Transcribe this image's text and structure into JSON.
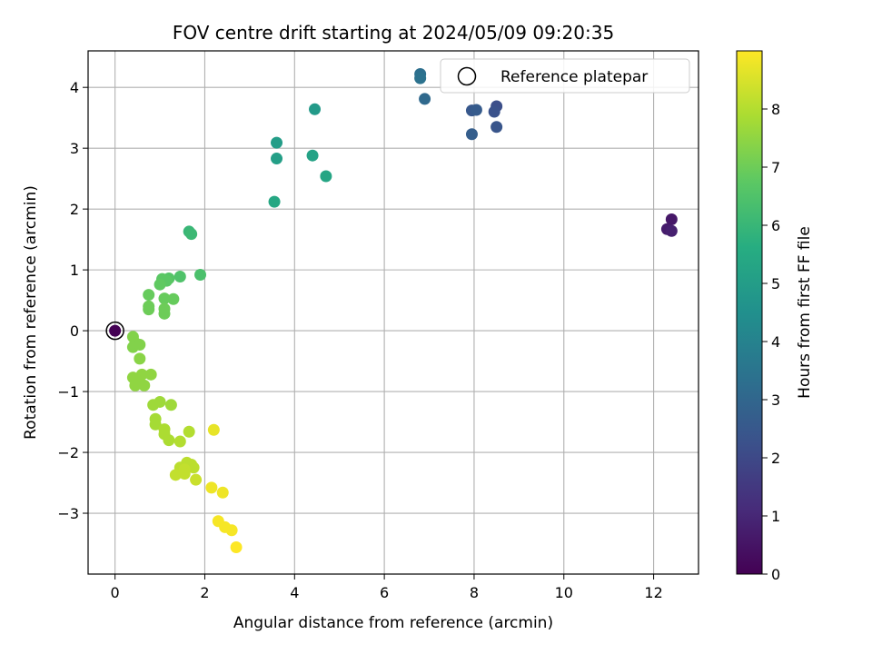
{
  "chart_data": {
    "type": "scatter",
    "title": "FOV centre drift starting at 2024/05/09 09:20:35",
    "xlabel": "Angular distance from reference (arcmin)",
    "ylabel": "Rotation from reference (arcmin)",
    "xlim": [
      -0.6,
      13.0
    ],
    "ylim": [
      -4.0,
      4.6
    ],
    "xticks": [
      0,
      2,
      4,
      6,
      8,
      10,
      12
    ],
    "yticks": [
      -3,
      -2,
      -1,
      0,
      1,
      2,
      3,
      4
    ],
    "grid": true,
    "legend": {
      "position": "top-right",
      "entries": [
        "Reference platepar"
      ]
    },
    "colorbar": {
      "label": "Hours from first FF file",
      "range": [
        0,
        9.0
      ],
      "ticks": [
        0,
        1,
        2,
        3,
        4,
        5,
        6,
        7,
        8
      ],
      "colormap": "viridis"
    },
    "reference_point": {
      "x": 0,
      "y": 0,
      "hours": 0
    },
    "points": [
      {
        "x": 12.4,
        "y": 1.83,
        "hours": 0.6
      },
      {
        "x": 12.3,
        "y": 1.67,
        "hours": 0.7
      },
      {
        "x": 12.4,
        "y": 1.64,
        "hours": 0.8
      },
      {
        "x": 8.5,
        "y": 3.69,
        "hours": 2.2
      },
      {
        "x": 8.45,
        "y": 3.6,
        "hours": 2.3
      },
      {
        "x": 8.5,
        "y": 3.35,
        "hours": 2.4
      },
      {
        "x": 7.95,
        "y": 3.62,
        "hours": 2.5
      },
      {
        "x": 8.05,
        "y": 3.63,
        "hours": 2.6
      },
      {
        "x": 7.95,
        "y": 3.23,
        "hours": 2.7
      },
      {
        "x": 6.9,
        "y": 3.81,
        "hours": 3.1
      },
      {
        "x": 6.8,
        "y": 4.22,
        "hours": 3.3
      },
      {
        "x": 6.8,
        "y": 4.15,
        "hours": 3.4
      },
      {
        "x": 4.45,
        "y": 3.64,
        "hours": 4.9
      },
      {
        "x": 3.6,
        "y": 3.09,
        "hours": 5.0
      },
      {
        "x": 3.6,
        "y": 2.83,
        "hours": 5.1
      },
      {
        "x": 4.4,
        "y": 2.88,
        "hours": 5.2
      },
      {
        "x": 4.7,
        "y": 2.54,
        "hours": 5.3
      },
      {
        "x": 3.55,
        "y": 2.12,
        "hours": 5.4
      },
      {
        "x": 1.65,
        "y": 1.63,
        "hours": 6.0
      },
      {
        "x": 1.7,
        "y": 1.59,
        "hours": 6.1
      },
      {
        "x": 1.9,
        "y": 0.92,
        "hours": 6.4
      },
      {
        "x": 1.45,
        "y": 0.89,
        "hours": 6.5
      },
      {
        "x": 1.2,
        "y": 0.86,
        "hours": 6.6
      },
      {
        "x": 1.05,
        "y": 0.85,
        "hours": 6.7
      },
      {
        "x": 1.15,
        "y": 0.82,
        "hours": 6.7
      },
      {
        "x": 1.0,
        "y": 0.76,
        "hours": 6.8
      },
      {
        "x": 0.75,
        "y": 0.59,
        "hours": 6.9
      },
      {
        "x": 1.1,
        "y": 0.53,
        "hours": 6.9
      },
      {
        "x": 1.3,
        "y": 0.52,
        "hours": 6.9
      },
      {
        "x": 0.75,
        "y": 0.4,
        "hours": 7.0
      },
      {
        "x": 0.75,
        "y": 0.35,
        "hours": 7.0
      },
      {
        "x": 1.1,
        "y": 0.36,
        "hours": 7.0
      },
      {
        "x": 1.1,
        "y": 0.28,
        "hours": 7.0
      },
      {
        "x": 0.4,
        "y": -0.1,
        "hours": 7.3
      },
      {
        "x": 0.45,
        "y": -0.2,
        "hours": 7.3
      },
      {
        "x": 0.4,
        "y": -0.27,
        "hours": 7.3
      },
      {
        "x": 0.55,
        "y": -0.23,
        "hours": 7.3
      },
      {
        "x": 0.55,
        "y": -0.46,
        "hours": 7.4
      },
      {
        "x": 0.6,
        "y": -0.72,
        "hours": 7.5
      },
      {
        "x": 0.4,
        "y": -0.77,
        "hours": 7.5
      },
      {
        "x": 0.8,
        "y": -0.72,
        "hours": 7.5
      },
      {
        "x": 0.5,
        "y": -0.82,
        "hours": 7.5
      },
      {
        "x": 0.45,
        "y": -0.9,
        "hours": 7.5
      },
      {
        "x": 0.65,
        "y": -0.9,
        "hours": 7.5
      },
      {
        "x": 0.85,
        "y": -1.22,
        "hours": 7.7
      },
      {
        "x": 1.0,
        "y": -1.17,
        "hours": 7.7
      },
      {
        "x": 1.25,
        "y": -1.22,
        "hours": 7.7
      },
      {
        "x": 0.9,
        "y": -1.45,
        "hours": 7.8
      },
      {
        "x": 0.9,
        "y": -1.54,
        "hours": 7.8
      },
      {
        "x": 1.1,
        "y": -1.62,
        "hours": 7.9
      },
      {
        "x": 1.1,
        "y": -1.7,
        "hours": 7.9
      },
      {
        "x": 1.2,
        "y": -1.8,
        "hours": 7.9
      },
      {
        "x": 1.45,
        "y": -1.82,
        "hours": 8.0
      },
      {
        "x": 1.65,
        "y": -1.66,
        "hours": 8.0
      },
      {
        "x": 1.6,
        "y": -2.17,
        "hours": 8.1
      },
      {
        "x": 1.7,
        "y": -2.2,
        "hours": 8.1
      },
      {
        "x": 1.45,
        "y": -2.25,
        "hours": 8.1
      },
      {
        "x": 1.75,
        "y": -2.25,
        "hours": 8.1
      },
      {
        "x": 1.55,
        "y": -2.28,
        "hours": 8.2
      },
      {
        "x": 1.35,
        "y": -2.37,
        "hours": 8.2
      },
      {
        "x": 1.55,
        "y": -2.35,
        "hours": 8.2
      },
      {
        "x": 1.8,
        "y": -2.45,
        "hours": 8.3
      },
      {
        "x": 2.2,
        "y": -1.63,
        "hours": 8.7
      },
      {
        "x": 2.15,
        "y": -2.58,
        "hours": 8.8
      },
      {
        "x": 2.4,
        "y": -2.66,
        "hours": 8.8
      },
      {
        "x": 2.3,
        "y": -3.13,
        "hours": 8.9
      },
      {
        "x": 2.45,
        "y": -3.23,
        "hours": 8.9
      },
      {
        "x": 2.6,
        "y": -3.28,
        "hours": 8.9
      },
      {
        "x": 2.7,
        "y": -3.56,
        "hours": 9.0
      }
    ]
  }
}
